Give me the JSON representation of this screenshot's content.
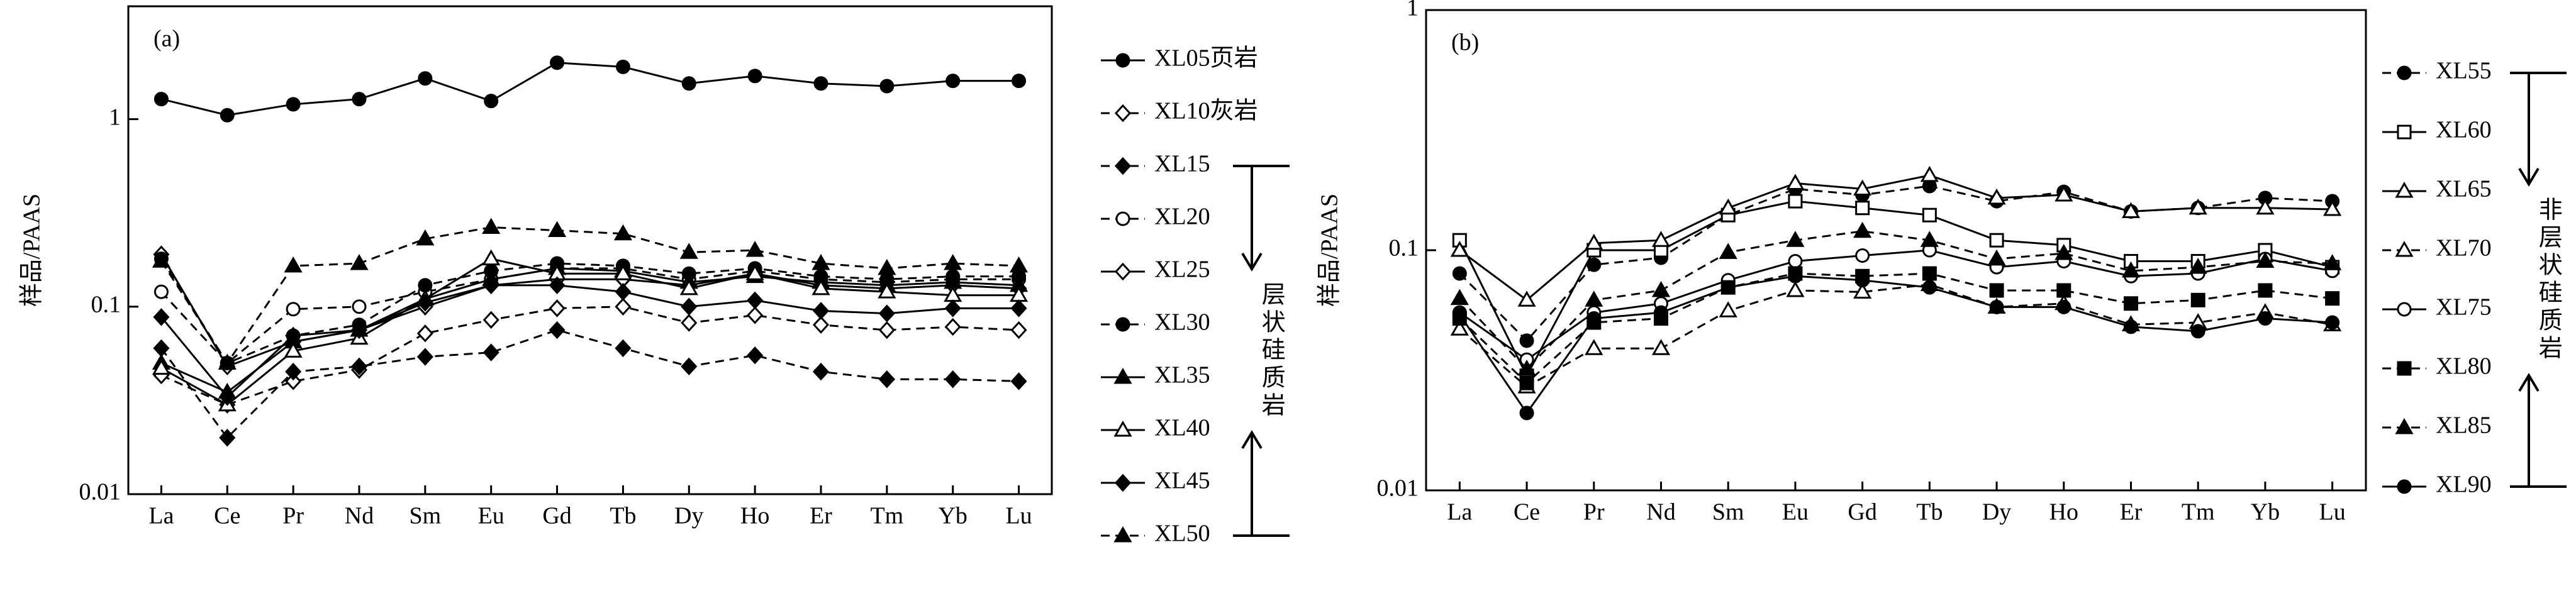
{
  "chart_data": [
    {
      "type": "line",
      "panel_label": "(a)",
      "y_label": "样品/PAAS",
      "log_scale": true,
      "legend": "right",
      "group_label": "层状硅质岩",
      "categories": [
        "La",
        "Ce",
        "Pr",
        "Nd",
        "Sm",
        "Eu",
        "Gd",
        "Tb",
        "Dy",
        "Ho",
        "Er",
        "Tm",
        "Yb",
        "Lu"
      ],
      "ylim": [
        0.01,
        4
      ],
      "yticks": [
        0.01,
        0.1,
        1
      ],
      "series": [
        {
          "name": "XL05页岩",
          "color": "#000000",
          "dash": false,
          "marker": "circle",
          "filled": true,
          "values": [
            1.28,
            1.05,
            1.2,
            1.28,
            1.65,
            1.25,
            2.0,
            1.9,
            1.55,
            1.7,
            1.55,
            1.5,
            1.6,
            1.6
          ]
        },
        {
          "name": "XL10灰岩",
          "color": "#000000",
          "dash": true,
          "marker": "diamond",
          "filled": false,
          "values": [
            0.043,
            0.03,
            0.04,
            0.046,
            0.072,
            0.085,
            0.098,
            0.1,
            0.082,
            0.09,
            0.08,
            0.075,
            0.078,
            0.075
          ]
        },
        {
          "name": "XL15",
          "color": "#000000",
          "dash": true,
          "marker": "diamond",
          "filled": true,
          "values": [
            0.06,
            0.02,
            0.045,
            0.048,
            0.054,
            0.057,
            0.075,
            0.06,
            0.048,
            0.055,
            0.045,
            0.041,
            0.041,
            0.04
          ]
        },
        {
          "name": "XL20",
          "color": "#000000",
          "dash": true,
          "marker": "circle",
          "filled": false,
          "values": [
            0.12,
            0.05,
            0.097,
            0.1,
            0.12,
            0.14,
            0.16,
            0.16,
            0.14,
            0.155,
            0.14,
            0.135,
            0.14,
            0.14
          ]
        },
        {
          "name": "XL25",
          "color": "#000000",
          "dash": false,
          "marker": "diamond",
          "filled": false,
          "values": [
            0.19,
            0.048,
            0.065,
            0.075,
            0.1,
            0.13,
            0.14,
            0.14,
            0.13,
            0.15,
            0.13,
            0.125,
            0.13,
            0.125
          ]
        },
        {
          "name": "XL30",
          "color": "#000000",
          "dash": true,
          "marker": "circle",
          "filled": true,
          "values": [
            0.18,
            0.05,
            0.07,
            0.08,
            0.13,
            0.155,
            0.17,
            0.165,
            0.15,
            0.16,
            0.145,
            0.14,
            0.145,
            0.145
          ]
        },
        {
          "name": "XL35",
          "color": "#000000",
          "dash": false,
          "marker": "triangle",
          "filled": true,
          "values": [
            0.05,
            0.035,
            0.065,
            0.075,
            0.11,
            0.14,
            0.16,
            0.155,
            0.135,
            0.145,
            0.135,
            0.13,
            0.135,
            0.13
          ]
        },
        {
          "name": "XL40",
          "color": "#000000",
          "dash": false,
          "marker": "triangle",
          "filled": false,
          "values": [
            0.047,
            0.03,
            0.058,
            0.068,
            0.11,
            0.18,
            0.15,
            0.15,
            0.125,
            0.15,
            0.125,
            0.12,
            0.115,
            0.115
          ]
        },
        {
          "name": "XL45",
          "color": "#000000",
          "dash": false,
          "marker": "diamond",
          "filled": true,
          "values": [
            0.088,
            0.033,
            0.07,
            0.075,
            0.105,
            0.13,
            0.13,
            0.12,
            0.1,
            0.108,
            0.095,
            0.092,
            0.098,
            0.098
          ]
        },
        {
          "name": "XL50",
          "color": "#000000",
          "dash": true,
          "marker": "triangle",
          "filled": true,
          "values": [
            0.175,
            0.05,
            0.165,
            0.17,
            0.23,
            0.265,
            0.255,
            0.245,
            0.195,
            0.2,
            0.17,
            0.16,
            0.17,
            0.165
          ]
        }
      ]
    },
    {
      "type": "line",
      "panel_label": "(b)",
      "y_label": "样品/PAAS",
      "log_scale": true,
      "legend": "right",
      "group_label": "非层状硅质岩",
      "categories": [
        "La",
        "Ce",
        "Pr",
        "Nd",
        "Sm",
        "Eu",
        "Gd",
        "Tb",
        "Dy",
        "Ho",
        "Er",
        "Tm",
        "Yb",
        "Lu"
      ],
      "ylim": [
        0.01,
        1
      ],
      "yticks": [
        0.01,
        0.1,
        1
      ],
      "series": [
        {
          "name": "XL55",
          "color": "#000000",
          "dash": true,
          "marker": "circle",
          "filled": true,
          "values": [
            0.08,
            0.042,
            0.087,
            0.093,
            0.14,
            0.18,
            0.17,
            0.185,
            0.16,
            0.175,
            0.145,
            0.15,
            0.165,
            0.16
          ]
        },
        {
          "name": "XL60",
          "color": "#000000",
          "dash": false,
          "marker": "square",
          "filled": false,
          "values": [
            0.11,
            0.03,
            0.1,
            0.1,
            0.14,
            0.16,
            0.15,
            0.14,
            0.11,
            0.105,
            0.09,
            0.09,
            0.1,
            0.085
          ]
        },
        {
          "name": "XL65",
          "color": "#000000",
          "dash": false,
          "marker": "triangle",
          "filled": false,
          "values": [
            0.1,
            0.062,
            0.107,
            0.11,
            0.15,
            0.19,
            0.18,
            0.205,
            0.165,
            0.17,
            0.145,
            0.15,
            0.15,
            0.148
          ]
        },
        {
          "name": "XL70",
          "color": "#000000",
          "dash": true,
          "marker": "triangle",
          "filled": false,
          "values": [
            0.047,
            0.027,
            0.039,
            0.039,
            0.056,
            0.068,
            0.067,
            0.072,
            0.058,
            0.06,
            0.049,
            0.05,
            0.055,
            0.049
          ]
        },
        {
          "name": "XL75",
          "color": "#000000",
          "dash": false,
          "marker": "circle",
          "filled": false,
          "values": [
            0.055,
            0.035,
            0.055,
            0.06,
            0.075,
            0.09,
            0.095,
            0.1,
            0.085,
            0.09,
            0.078,
            0.08,
            0.092,
            0.082
          ]
        },
        {
          "name": "XL80",
          "color": "#000000",
          "dash": true,
          "marker": "square",
          "filled": true,
          "values": [
            0.052,
            0.028,
            0.05,
            0.052,
            0.07,
            0.08,
            0.078,
            0.08,
            0.068,
            0.068,
            0.06,
            0.062,
            0.068,
            0.063
          ]
        },
        {
          "name": "XL85",
          "color": "#000000",
          "dash": true,
          "marker": "triangle",
          "filled": true,
          "values": [
            0.063,
            0.032,
            0.062,
            0.068,
            0.098,
            0.11,
            0.12,
            0.11,
            0.092,
            0.097,
            0.082,
            0.085,
            0.09,
            0.088
          ]
        },
        {
          "name": "XL90",
          "color": "#000000",
          "dash": false,
          "marker": "circle",
          "filled": true,
          "values": [
            0.054,
            0.021,
            0.052,
            0.055,
            0.07,
            0.078,
            0.075,
            0.07,
            0.058,
            0.058,
            0.048,
            0.046,
            0.052,
            0.05
          ]
        }
      ]
    }
  ]
}
